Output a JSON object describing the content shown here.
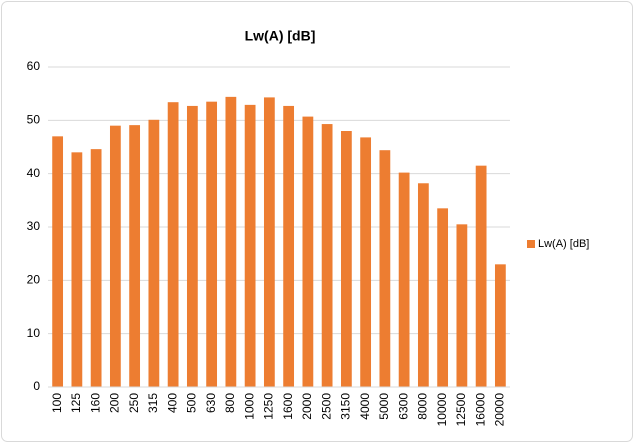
{
  "chart_data": {
    "type": "bar",
    "title": "Lw(A) [dB]",
    "categories": [
      "100",
      "125",
      "160",
      "200",
      "250",
      "315",
      "400",
      "500",
      "630",
      "800",
      "1000",
      "1250",
      "1600",
      "2000",
      "2500",
      "3150",
      "4000",
      "5000",
      "6300",
      "8000",
      "10000",
      "12500",
      "16000",
      "20000"
    ],
    "series": [
      {
        "name": "Lw(A) [dB]",
        "color": "#ed7d31",
        "values": [
          47,
          44,
          44.6,
          49,
          49.1,
          50.1,
          53.4,
          52.7,
          53.5,
          54.4,
          52.9,
          54.3,
          52.7,
          50.7,
          49.3,
          48,
          46.8,
          44.4,
          40.2,
          38.2,
          33.5,
          30.5,
          41.5,
          23
        ]
      }
    ],
    "ylim": [
      0,
      60
    ],
    "yticks": [
      0,
      10,
      20,
      30,
      40,
      50,
      60
    ],
    "grid": true,
    "legend": "right"
  }
}
